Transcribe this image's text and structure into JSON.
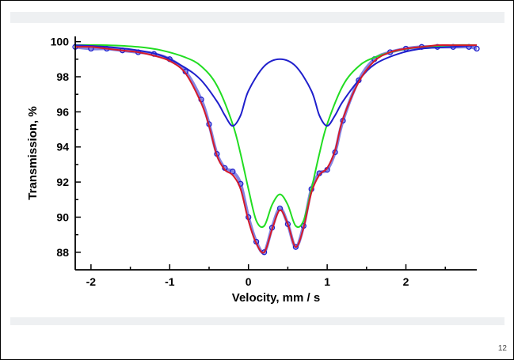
{
  "slide": {
    "page_number": "12"
  },
  "chart_data": {
    "type": "line",
    "title": "",
    "xlabel": "Velocity, mm / s",
    "ylabel": "Transmission, %",
    "xlim": [
      -2.2,
      2.9
    ],
    "ylim": [
      87,
      100.3
    ],
    "xticks": [
      "-2",
      "-1",
      "0",
      "1",
      "2"
    ],
    "yticks": [
      "88",
      "90",
      "92",
      "94",
      "96",
      "98",
      "100"
    ],
    "grid": false,
    "legend": "none",
    "series": [
      {
        "kind": "scatter",
        "color": "#1f1fcc",
        "x": [
          -2.2,
          -2.0,
          -1.8,
          -1.6,
          -1.4,
          -1.2,
          -1.0,
          -0.8,
          -0.6,
          -0.5,
          -0.4,
          -0.3,
          -0.2,
          -0.1,
          0.0,
          0.1,
          0.2,
          0.3,
          0.4,
          0.5,
          0.6,
          0.7,
          0.8,
          0.9,
          1.0,
          1.1,
          1.2,
          1.4,
          1.6,
          1.8,
          2.0,
          2.2,
          2.4,
          2.6,
          2.8,
          2.9
        ],
        "y": [
          99.7,
          99.6,
          99.6,
          99.5,
          99.4,
          99.3,
          99.0,
          98.3,
          96.7,
          95.3,
          93.6,
          92.8,
          92.6,
          91.9,
          90.0,
          88.6,
          88.0,
          89.4,
          90.5,
          89.6,
          88.3,
          89.5,
          91.6,
          92.5,
          92.7,
          93.7,
          95.5,
          97.8,
          99.0,
          99.4,
          99.6,
          99.7,
          99.7,
          99.7,
          99.7,
          99.6
        ]
      },
      {
        "kind": "line",
        "color": "#d61a2a",
        "x": [
          -2.2,
          -2.0,
          -1.8,
          -1.6,
          -1.4,
          -1.2,
          -1.0,
          -0.8,
          -0.6,
          -0.5,
          -0.4,
          -0.3,
          -0.2,
          -0.1,
          0.0,
          0.1,
          0.2,
          0.3,
          0.4,
          0.5,
          0.6,
          0.7,
          0.8,
          0.9,
          1.0,
          1.1,
          1.2,
          1.4,
          1.6,
          1.8,
          2.0,
          2.2,
          2.4,
          2.6,
          2.8,
          2.9
        ],
        "y": [
          99.7,
          99.7,
          99.6,
          99.5,
          99.4,
          99.2,
          98.9,
          98.2,
          96.5,
          95.2,
          93.5,
          92.7,
          92.4,
          91.6,
          89.8,
          88.5,
          88.0,
          89.3,
          90.4,
          89.6,
          88.3,
          89.4,
          91.4,
          92.4,
          92.8,
          93.8,
          95.6,
          97.7,
          98.9,
          99.4,
          99.6,
          99.7,
          99.8,
          99.8,
          99.8,
          99.8
        ]
      },
      {
        "kind": "line",
        "color": "#1f1fcc",
        "x": [
          -2.2,
          -1.8,
          -1.4,
          -1.1,
          -0.8,
          -0.6,
          -0.4,
          -0.3,
          -0.2,
          -0.1,
          0.0,
          0.2,
          0.4,
          0.6,
          0.8,
          0.9,
          1.0,
          1.1,
          1.2,
          1.4,
          1.6,
          1.9,
          2.2,
          2.6,
          2.9
        ],
        "y": [
          99.8,
          99.7,
          99.5,
          99.2,
          98.5,
          97.8,
          96.6,
          95.8,
          95.2,
          95.8,
          97.2,
          98.6,
          99.0,
          98.6,
          97.2,
          95.8,
          95.2,
          95.8,
          96.6,
          97.8,
          98.7,
          99.3,
          99.6,
          99.7,
          99.8
        ]
      },
      {
        "kind": "line",
        "color": "#22dd22",
        "x": [
          -2.2,
          -1.8,
          -1.4,
          -1.1,
          -0.8,
          -0.6,
          -0.4,
          -0.2,
          -0.1,
          0.0,
          0.1,
          0.2,
          0.3,
          0.4,
          0.5,
          0.6,
          0.7,
          0.8,
          0.9,
          1.0,
          1.2,
          1.4,
          1.6,
          1.9,
          2.2,
          2.6,
          2.9
        ],
        "y": [
          99.8,
          99.8,
          99.7,
          99.5,
          99.1,
          98.6,
          97.5,
          95.3,
          93.6,
          91.6,
          89.8,
          89.5,
          90.7,
          91.3,
          90.7,
          89.5,
          89.8,
          91.6,
          93.6,
          95.3,
          97.5,
          98.6,
          99.1,
          99.5,
          99.7,
          99.8,
          99.8
        ]
      }
    ]
  }
}
